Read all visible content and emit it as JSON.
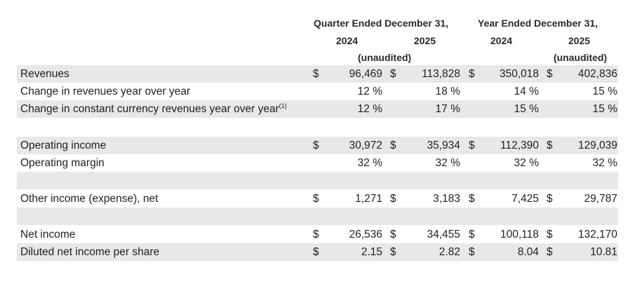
{
  "header": {
    "quarter_title": "Quarter Ended December 31,",
    "year_title": "Year Ended December 31,",
    "years": [
      "2024",
      "2025",
      "2024",
      "2025"
    ],
    "unaudited_quarter": "(unaudited)",
    "unaudited_year": "(unaudited)"
  },
  "rows": [
    {
      "label": "Revenues",
      "sup": "",
      "cells": [
        {
          "cur": "$",
          "val": "96,469"
        },
        {
          "cur": "$",
          "val": "113,828"
        },
        {
          "cur": "$",
          "val": "350,018"
        },
        {
          "cur": "$",
          "val": "402,836"
        }
      ]
    },
    {
      "label": "Change in revenues year over year",
      "sup": "",
      "cells": [
        {
          "cur": "",
          "val": "12 %"
        },
        {
          "cur": "",
          "val": "18 %"
        },
        {
          "cur": "",
          "val": "14 %"
        },
        {
          "cur": "",
          "val": "15 %"
        }
      ]
    },
    {
      "label": "Change in constant currency revenues year over year",
      "sup": "(1)",
      "cells": [
        {
          "cur": "",
          "val": "12 %"
        },
        {
          "cur": "",
          "val": "17 %"
        },
        {
          "cur": "",
          "val": "15 %"
        },
        {
          "cur": "",
          "val": "15 %"
        }
      ]
    },
    {
      "label": "",
      "sup": "",
      "cells": []
    },
    {
      "label": "Operating income",
      "sup": "",
      "cells": [
        {
          "cur": "$",
          "val": "30,972"
        },
        {
          "cur": "$",
          "val": "35,934"
        },
        {
          "cur": "$",
          "val": "112,390"
        },
        {
          "cur": "$",
          "val": "129,039"
        }
      ]
    },
    {
      "label": "Operating margin",
      "sup": "",
      "cells": [
        {
          "cur": "",
          "val": "32 %"
        },
        {
          "cur": "",
          "val": "32 %"
        },
        {
          "cur": "",
          "val": "32 %"
        },
        {
          "cur": "",
          "val": "32 %"
        }
      ]
    },
    {
      "label": "",
      "sup": "",
      "cells": []
    },
    {
      "label": "Other income (expense), net",
      "sup": "",
      "cells": [
        {
          "cur": "$",
          "val": "1,271"
        },
        {
          "cur": "$",
          "val": "3,183"
        },
        {
          "cur": "$",
          "val": "7,425"
        },
        {
          "cur": "$",
          "val": "29,787"
        }
      ]
    },
    {
      "label": "",
      "sup": "",
      "cells": []
    },
    {
      "label": "Net income",
      "sup": "",
      "cells": [
        {
          "cur": "$",
          "val": "26,536"
        },
        {
          "cur": "$",
          "val": "34,455"
        },
        {
          "cur": "$",
          "val": "100,118"
        },
        {
          "cur": "$",
          "val": "132,170"
        }
      ]
    },
    {
      "label": "Diluted net income per share",
      "sup": "",
      "cells": [
        {
          "cur": "$",
          "val": "2.15"
        },
        {
          "cur": "$",
          "val": "2.82"
        },
        {
          "cur": "$",
          "val": "8.04"
        },
        {
          "cur": "$",
          "val": "10.81"
        }
      ]
    }
  ]
}
